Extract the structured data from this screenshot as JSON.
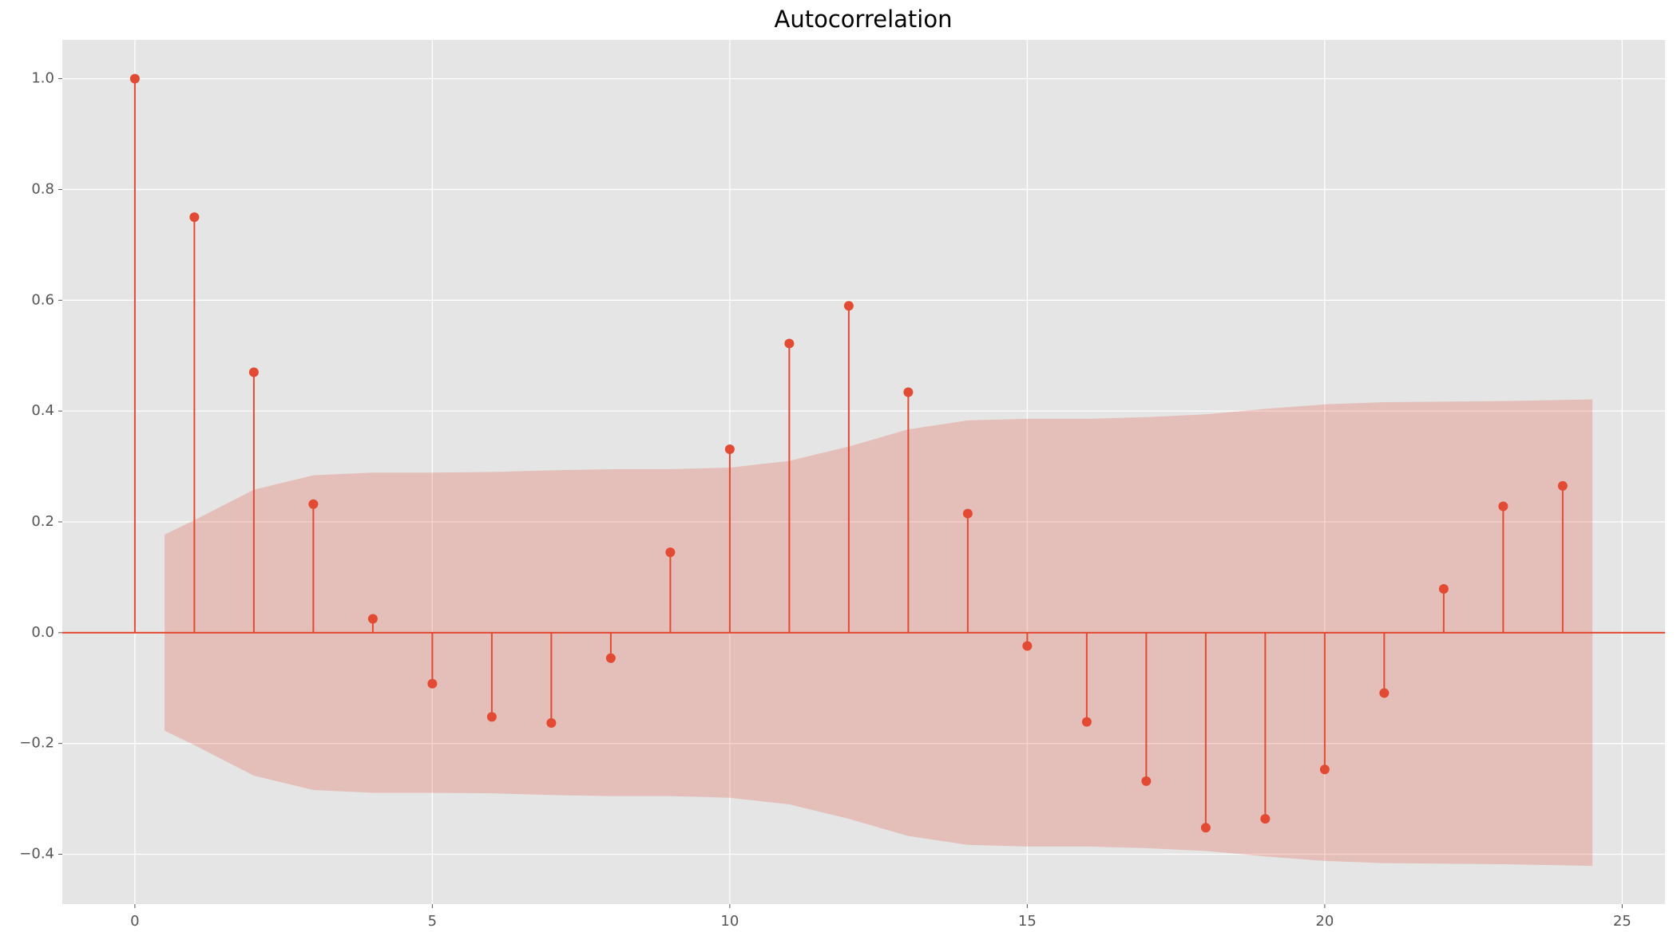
{
  "chart_data": {
    "type": "stem",
    "title": "Autocorrelation",
    "x": [
      0,
      1,
      2,
      3,
      4,
      5,
      6,
      7,
      8,
      9,
      10,
      11,
      12,
      13,
      14,
      15,
      16,
      17,
      18,
      19,
      20,
      21,
      22,
      23,
      24
    ],
    "values": [
      1.0,
      0.75,
      0.47,
      0.232,
      0.025,
      -0.092,
      -0.152,
      -0.163,
      -0.046,
      0.145,
      0.331,
      0.522,
      0.59,
      0.434,
      0.215,
      -0.024,
      -0.161,
      -0.268,
      -0.352,
      -0.336,
      -0.247,
      -0.109,
      0.079,
      0.228,
      0.265
    ],
    "color": "#e24a33",
    "band": {
      "x": [
        0.5,
        1,
        2,
        3,
        4,
        5,
        6,
        7,
        8,
        9,
        10,
        11,
        12,
        13,
        14,
        15,
        16,
        17,
        18,
        19,
        20,
        21,
        22,
        23,
        24,
        24.5
      ],
      "upper": [
        0.177,
        0.203,
        0.258,
        0.284,
        0.289,
        0.289,
        0.29,
        0.293,
        0.295,
        0.295,
        0.298,
        0.31,
        0.336,
        0.367,
        0.383,
        0.386,
        0.386,
        0.389,
        0.394,
        0.404,
        0.412,
        0.416,
        0.417,
        0.418,
        0.42,
        0.421
      ],
      "lower": [
        -0.177,
        -0.203,
        -0.258,
        -0.284,
        -0.289,
        -0.289,
        -0.29,
        -0.293,
        -0.295,
        -0.295,
        -0.298,
        -0.31,
        -0.336,
        -0.367,
        -0.383,
        -0.386,
        -0.386,
        -0.389,
        -0.394,
        -0.404,
        -0.412,
        -0.416,
        -0.417,
        -0.418,
        -0.42,
        -0.421
      ],
      "color": "rgba(226,74,51,0.25)"
    },
    "xlim": [
      -1.22,
      25.72
    ],
    "ylim": [
      -0.49,
      1.07
    ],
    "xticks": [
      0,
      5,
      10,
      15,
      20,
      25
    ],
    "yticks": [
      {
        "value": -0.4,
        "label": "−0.4"
      },
      {
        "value": -0.2,
        "label": "−0.2"
      },
      {
        "value": 0,
        "label": "0.0"
      },
      0.2,
      0.4,
      0.6,
      0.8,
      {
        "value": 1.0,
        "label": "1.0"
      }
    ],
    "grid": true
  }
}
